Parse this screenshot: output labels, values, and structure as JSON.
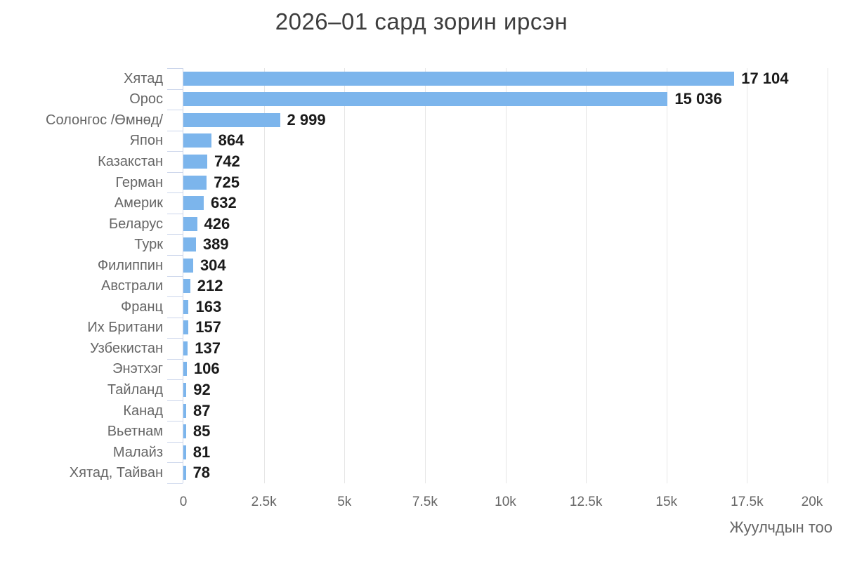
{
  "title": "2026–01 сард зорин ирсэн",
  "chart_data": {
    "type": "bar",
    "orientation": "horizontal",
    "title": "2026–01 сард зорин ирсэн",
    "xlabel": "Жуулчдын тоо",
    "ylabel": "",
    "xlim": [
      0,
      20000
    ],
    "grid": true,
    "legend": false,
    "categories": [
      "Хятад",
      "Орос",
      "Солонгос /Өмнөд/",
      "Япон",
      "Казакстан",
      "Герман",
      "Америк",
      "Беларус",
      "Турк",
      "Филиппин",
      "Австрали",
      "Франц",
      "Их Британи",
      "Узбекистан",
      "Энэтхэг",
      "Тайланд",
      "Канад",
      "Вьетнам",
      "Малайз",
      "Хятад, Тайван"
    ],
    "values": [
      17104,
      15036,
      2999,
      864,
      742,
      725,
      632,
      426,
      389,
      304,
      212,
      163,
      157,
      137,
      106,
      92,
      87,
      85,
      81,
      78
    ],
    "value_labels": [
      "17 104",
      "15 036",
      "2 999",
      "864",
      "742",
      "725",
      "632",
      "426",
      "389",
      "304",
      "212",
      "163",
      "157",
      "137",
      "106",
      "92",
      "87",
      "85",
      "81",
      "78"
    ],
    "x_ticks": [
      {
        "value": 0,
        "label": "0"
      },
      {
        "value": 2500,
        "label": "2.5k"
      },
      {
        "value": 5000,
        "label": "5k"
      },
      {
        "value": 7500,
        "label": "7.5k"
      },
      {
        "value": 10000,
        "label": "10k"
      },
      {
        "value": 12500,
        "label": "12.5k"
      },
      {
        "value": 15000,
        "label": "15k"
      },
      {
        "value": 17500,
        "label": "17.5k"
      },
      {
        "value": 20000,
        "label": "20k"
      }
    ],
    "colors": {
      "bar": "#7cb5ec",
      "axis_line": "#ccd6eb",
      "gridline": "#e6e6e6",
      "tick_label": "#666666",
      "category_label": "#666666",
      "value_label": "#1a1a1a",
      "title": "#3e3e3e"
    }
  }
}
